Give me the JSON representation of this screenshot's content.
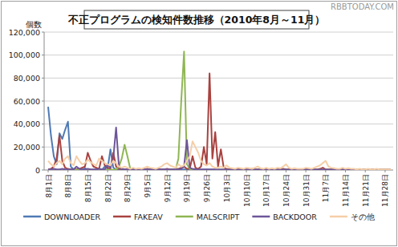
{
  "chart_data": {
    "type": "line",
    "title": "不正プログラムの検知件数推移（2010年8月～11月）",
    "y_label": "個数",
    "annotations": [
      "RBBTODAY.COM"
    ],
    "categories": [
      "8月1日",
      null,
      null,
      null,
      null,
      null,
      null,
      "8月8日",
      null,
      null,
      null,
      null,
      null,
      null,
      "8月15日",
      null,
      null,
      null,
      null,
      null,
      null,
      "8月22日",
      null,
      null,
      null,
      null,
      null,
      null,
      "8月29日",
      null,
      null,
      null,
      null,
      null,
      null,
      "9月5日",
      null,
      null,
      null,
      null,
      null,
      null,
      "9月12日",
      null,
      null,
      null,
      null,
      null,
      null,
      "9月19日",
      null,
      null,
      null,
      null,
      null,
      null,
      "9月26日",
      null,
      null,
      null,
      null,
      null,
      null,
      "10月3日",
      null,
      null,
      null,
      null,
      null,
      null,
      "10月10日",
      null,
      null,
      null,
      null,
      null,
      null,
      "10月17日",
      null,
      null,
      null,
      null,
      null,
      null,
      "10月24日",
      null,
      null,
      null,
      null,
      null,
      null,
      "10月31日",
      null,
      null,
      null,
      null,
      null,
      null,
      "11月7日",
      null,
      null,
      null,
      null,
      null,
      null,
      "11月14日",
      null,
      null,
      null,
      null,
      null,
      null,
      "11月21日",
      null,
      null,
      null,
      null,
      null,
      null,
      "11月28日",
      null,
      null
    ],
    "series": [
      {
        "name": "DOWNLOADER",
        "color": "#4f7ab5",
        "values": [
          55000,
          30000,
          12000,
          5000,
          32000,
          27000,
          35000,
          42000,
          3000,
          500,
          300,
          200,
          200,
          1500,
          200,
          300,
          200,
          500,
          300,
          200,
          3000,
          1000,
          18000,
          2000,
          500,
          300,
          200,
          200,
          300,
          200,
          200,
          300,
          200,
          500,
          200,
          200,
          300,
          200,
          200,
          300,
          200,
          200,
          300,
          200,
          200,
          300,
          200,
          200,
          500,
          300,
          200,
          200,
          300,
          200,
          200,
          200,
          300,
          200,
          200,
          200,
          200,
          300,
          200,
          200,
          100,
          100,
          200,
          100,
          100,
          100,
          100,
          100,
          100,
          100,
          100,
          100,
          100,
          100,
          100,
          100,
          100,
          100,
          100,
          100,
          100,
          100,
          100,
          100,
          100,
          100,
          100,
          100,
          100,
          100,
          100,
          100,
          100,
          100,
          100,
          100,
          100,
          100,
          100,
          100,
          100,
          100,
          100,
          100,
          100,
          100,
          100,
          100,
          100,
          100,
          100,
          100,
          100,
          100,
          100,
          100,
          100,
          100
        ]
      },
      {
        "name": "FAKEAV",
        "color": "#a8423f",
        "values": [
          500,
          1000,
          3000,
          10000,
          30000,
          8000,
          2000,
          1000,
          500,
          500,
          500,
          1000,
          2000,
          3000,
          15000,
          8000,
          3000,
          2000,
          1000,
          12000,
          4000,
          2000,
          1000,
          15000,
          3000,
          1000,
          1000,
          500,
          500,
          500,
          500,
          500,
          1000,
          500,
          500,
          1000,
          500,
          500,
          500,
          1000,
          500,
          500,
          1000,
          500,
          500,
          500,
          1000,
          2000,
          3000,
          1000,
          1000,
          12000,
          2000,
          1000,
          3000,
          20000,
          5000,
          84000,
          10000,
          33000,
          3000,
          18000,
          2000,
          1000,
          500,
          500,
          500,
          1000,
          500,
          500,
          500,
          500,
          1000,
          500,
          500,
          500,
          500,
          500,
          500,
          500,
          500,
          500,
          500,
          1000,
          500,
          500,
          500,
          500,
          500,
          500,
          500,
          500,
          500,
          500,
          500,
          500,
          1000,
          2000,
          500,
          500,
          500,
          500,
          500,
          500,
          500,
          500,
          500,
          500,
          500,
          500,
          500,
          500,
          500,
          500,
          500,
          500,
          500,
          500,
          500,
          500,
          500,
          500
        ]
      },
      {
        "name": "MALSCRIPT",
        "color": "#8fb653",
        "values": [
          100,
          100,
          100,
          100,
          100,
          100,
          100,
          100,
          100,
          100,
          100,
          100,
          100,
          100,
          100,
          100,
          100,
          100,
          100,
          100,
          100,
          100,
          100,
          100,
          500,
          3000,
          10000,
          22000,
          12000,
          1000,
          200,
          200,
          200,
          200,
          200,
          200,
          200,
          200,
          200,
          200,
          200,
          200,
          200,
          200,
          200,
          200,
          10000,
          60000,
          103000,
          5000,
          1000,
          200,
          200,
          200,
          200,
          200,
          200,
          200,
          200,
          200,
          100,
          100,
          100,
          100,
          100,
          100,
          100,
          100,
          100,
          100,
          100,
          100,
          100,
          100,
          100,
          100,
          100,
          100,
          100,
          100,
          100,
          100,
          100,
          100,
          100,
          100,
          100,
          100,
          100,
          100,
          100,
          100,
          100,
          100,
          100,
          100,
          100,
          100,
          100,
          100,
          100,
          100,
          100,
          100,
          100,
          100,
          100,
          100,
          100,
          100,
          100,
          100,
          100,
          100,
          100,
          100,
          100,
          100,
          100,
          100,
          100,
          100
        ]
      },
      {
        "name": "BACKDOOR",
        "color": "#6e559a",
        "values": [
          500,
          500,
          1000,
          500,
          500,
          1000,
          500,
          500,
          500,
          500,
          3000,
          1000,
          500,
          500,
          1000,
          500,
          500,
          500,
          1000,
          500,
          500,
          5000,
          2000,
          10000,
          37000,
          3000,
          1000,
          500,
          500,
          500,
          500,
          500,
          500,
          500,
          500,
          500,
          500,
          500,
          500,
          500,
          500,
          500,
          500,
          500,
          500,
          500,
          500,
          1000,
          3000,
          26000,
          2000,
          1000,
          500,
          500,
          500,
          500,
          500,
          500,
          500,
          500,
          300,
          300,
          300,
          300,
          300,
          300,
          300,
          300,
          300,
          300,
          300,
          300,
          300,
          300,
          300,
          300,
          300,
          300,
          300,
          300,
          300,
          300,
          300,
          300,
          300,
          300,
          300,
          300,
          300,
          300,
          300,
          300,
          300,
          300,
          300,
          300,
          300,
          300,
          300,
          300,
          300,
          300,
          300,
          300,
          300,
          300,
          300,
          300,
          300,
          300,
          300,
          300,
          300,
          300,
          300,
          300,
          300,
          300,
          300,
          300,
          300,
          300
        ]
      },
      {
        "name": "その他",
        "color": "#f5cfa8",
        "values": [
          8000,
          5000,
          3000,
          6000,
          8000,
          5000,
          10000,
          12000,
          6000,
          4000,
          12000,
          8000,
          5000,
          6000,
          9000,
          7000,
          5000,
          4000,
          10000,
          8000,
          6000,
          5000,
          4000,
          8000,
          6000,
          3000,
          2000,
          3000,
          2000,
          1000,
          2000,
          1000,
          1500,
          1000,
          2000,
          3000,
          2000,
          1500,
          1000,
          2000,
          3000,
          5000,
          6000,
          4000,
          3000,
          2000,
          5000,
          3000,
          4000,
          8000,
          12000,
          25000,
          20000,
          15000,
          8000,
          5000,
          4000,
          6000,
          3000,
          2000,
          2000,
          3000,
          2000,
          4000,
          2000,
          1500,
          1000,
          2000,
          1500,
          1000,
          2000,
          1500,
          1000,
          2000,
          3000,
          1500,
          1000,
          2000,
          1000,
          1500,
          1000,
          2000,
          1500,
          3000,
          5000,
          2000,
          1000,
          1500,
          1000,
          1000,
          1000,
          2000,
          1500,
          1000,
          2000,
          3000,
          4000,
          6000,
          8000,
          3000,
          2000,
          1500,
          1000,
          1000,
          2000,
          1000,
          1500,
          1000,
          1000,
          500,
          1000,
          500,
          500,
          1000,
          500,
          500,
          1000,
          500,
          500,
          500,
          500,
          500
        ]
      }
    ],
    "ylim": [
      0,
      120000
    ],
    "yticks": [
      0,
      {
        "value": 20000,
        "label": "20,000"
      },
      {
        "value": 40000,
        "label": "40,000"
      },
      {
        "value": 60000,
        "label": "60,000"
      },
      {
        "value": 80000,
        "label": "80,000"
      },
      {
        "value": 100000,
        "label": "100,000"
      },
      {
        "value": 120000,
        "label": "120,000"
      }
    ],
    "grid": true,
    "legend": "bottom"
  }
}
